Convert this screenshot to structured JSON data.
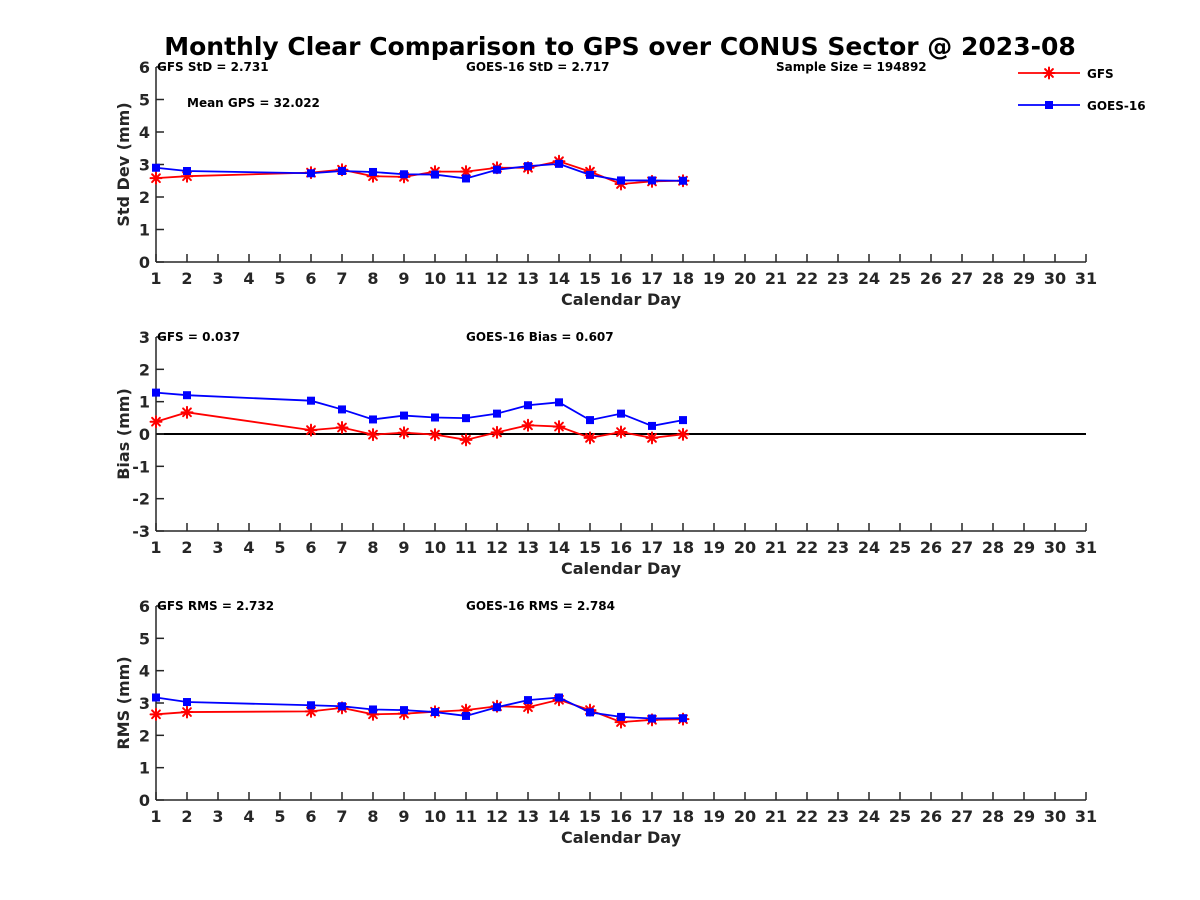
{
  "chart_data": {
    "title": "Monthly Clear Comparison to GPS over CONUS Sector @ 2023-08",
    "legend": {
      "placement": "top-right",
      "entries": [
        {
          "name": "GFS",
          "color": "#ff0000",
          "marker": "asterisk"
        },
        {
          "name": "GOES-16",
          "color": "#0000ff",
          "marker": "square"
        }
      ]
    },
    "panels": [
      {
        "type": "line",
        "ylabel": "Std Dev (mm)",
        "xlabel": "Calendar Day",
        "xlim": [
          1,
          31
        ],
        "ylim": [
          0,
          6
        ],
        "yticks": [
          "0",
          "1",
          "2",
          "3",
          "4",
          "5",
          "6"
        ],
        "xticks": [
          "1",
          "2",
          "3",
          "4",
          "5",
          "6",
          "7",
          "8",
          "9",
          "10",
          "11",
          "12",
          "13",
          "14",
          "15",
          "16",
          "17",
          "18",
          "19",
          "20",
          "21",
          "22",
          "23",
          "24",
          "25",
          "26",
          "27",
          "28",
          "29",
          "30",
          "31"
        ],
        "zero_line": false,
        "annotations": {
          "left": "GFS StD = 2.731",
          "middle": "GOES-16 StD = 2.717",
          "right": "Sample Size = 194892",
          "extra": "Mean GPS = 32.022"
        },
        "x": [
          1,
          2,
          6,
          7,
          8,
          9,
          10,
          11,
          12,
          13,
          14,
          15,
          16,
          17,
          18
        ],
        "series": [
          {
            "name": "GFS",
            "values": [
              2.58,
              2.64,
              2.75,
              2.84,
              2.64,
              2.62,
              2.78,
              2.78,
              2.9,
              2.9,
              3.1,
              2.78,
              2.4,
              2.48,
              2.5
            ]
          },
          {
            "name": "GOES-16",
            "values": [
              2.9,
              2.8,
              2.73,
              2.8,
              2.77,
              2.7,
              2.69,
              2.57,
              2.84,
              2.95,
              3.02,
              2.68,
              2.51,
              2.51,
              2.5
            ]
          }
        ]
      },
      {
        "type": "line",
        "ylabel": "Bias (mm)",
        "xlabel": "Calendar Day",
        "xlim": [
          1,
          31
        ],
        "ylim": [
          -3,
          3
        ],
        "yticks": [
          "-3",
          "-2",
          "-1",
          "0",
          "1",
          "2",
          "3"
        ],
        "xticks": [
          "1",
          "2",
          "3",
          "4",
          "5",
          "6",
          "7",
          "8",
          "9",
          "10",
          "11",
          "12",
          "13",
          "14",
          "15",
          "16",
          "17",
          "18",
          "19",
          "20",
          "21",
          "22",
          "23",
          "24",
          "25",
          "26",
          "27",
          "28",
          "29",
          "30",
          "31"
        ],
        "zero_line": true,
        "annotations": {
          "left": "GFS = 0.037",
          "middle": "GOES-16 Bias = 0.607"
        },
        "x": [
          1,
          2,
          6,
          7,
          8,
          9,
          10,
          11,
          12,
          13,
          14,
          15,
          16,
          17,
          18
        ],
        "series": [
          {
            "name": "GFS",
            "values": [
              0.38,
              0.67,
              0.12,
              0.2,
              -0.02,
              0.04,
              -0.02,
              -0.18,
              0.05,
              0.27,
              0.23,
              -0.12,
              0.06,
              -0.12,
              -0.01
            ]
          },
          {
            "name": "GOES-16",
            "values": [
              1.28,
              1.2,
              1.03,
              0.76,
              0.45,
              0.57,
              0.51,
              0.49,
              0.63,
              0.89,
              0.98,
              0.43,
              0.63,
              0.25,
              0.43
            ]
          }
        ]
      },
      {
        "type": "line",
        "ylabel": "RMS (mm)",
        "xlabel": "Calendar Day",
        "xlim": [
          1,
          31
        ],
        "ylim": [
          0,
          6
        ],
        "yticks": [
          "0",
          "1",
          "2",
          "3",
          "4",
          "5",
          "6"
        ],
        "xticks": [
          "1",
          "2",
          "3",
          "4",
          "5",
          "6",
          "7",
          "8",
          "9",
          "10",
          "11",
          "12",
          "13",
          "14",
          "15",
          "16",
          "17",
          "18",
          "19",
          "20",
          "21",
          "22",
          "23",
          "24",
          "25",
          "26",
          "27",
          "28",
          "29",
          "30",
          "31"
        ],
        "zero_line": false,
        "annotations": {
          "left": "GFS RMS = 2.732",
          "middle": "GOES-16 RMS = 2.784"
        },
        "x": [
          1,
          2,
          6,
          7,
          8,
          9,
          10,
          11,
          12,
          13,
          14,
          15,
          16,
          17,
          18
        ],
        "series": [
          {
            "name": "GFS",
            "values": [
              2.65,
              2.72,
              2.74,
              2.85,
              2.65,
              2.67,
              2.73,
              2.78,
              2.9,
              2.87,
              3.1,
              2.78,
              2.41,
              2.48,
              2.5
            ]
          },
          {
            "name": "GOES-16",
            "values": [
              3.17,
              3.03,
              2.93,
              2.9,
              2.8,
              2.78,
              2.72,
              2.6,
              2.87,
              3.09,
              3.17,
              2.71,
              2.57,
              2.52,
              2.53
            ]
          }
        ]
      }
    ]
  }
}
